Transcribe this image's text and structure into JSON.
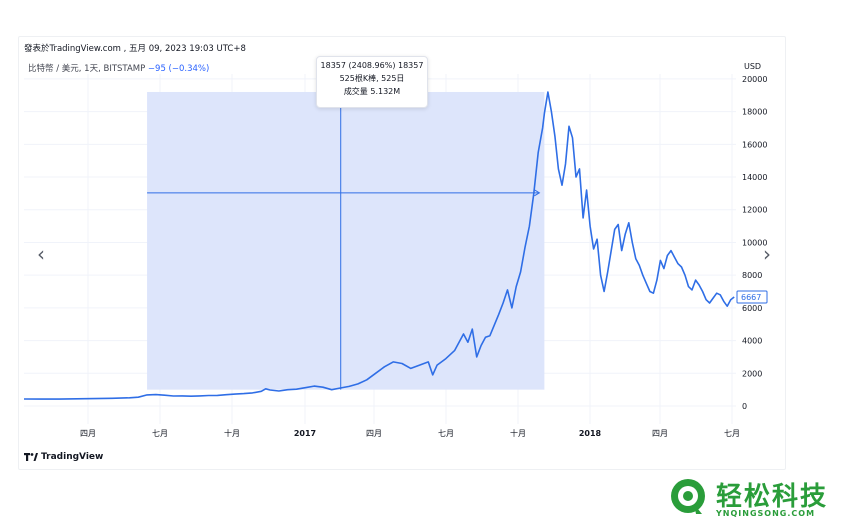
{
  "header": {
    "published": "發表於TradingView.com , 五月 09, 2023 19:03 UTC+8"
  },
  "symbol": {
    "name": "比特幣 / 美元, 1天, BITSTAMP",
    "change": "−95 (−0.34%)"
  },
  "tooltip": {
    "line1": "18357 (2408.96%) 18357",
    "line2": "525根K棒, 525日",
    "line3": "成交量 5.132M"
  },
  "last_price": "6667",
  "currency": "USD",
  "branding": {
    "tradingview": "TradingView",
    "watermark": "轻松科技",
    "watermark_url": "YNQINGSONG.COM"
  },
  "colors": {
    "line": "#2f6ee6",
    "measure_fill": "#dbe4fb",
    "measure_line": "#2f6ee6"
  },
  "icons": {
    "prev": "chevron-left-icon",
    "next": "chevron-right-icon"
  },
  "chart_data": {
    "type": "line",
    "title": "",
    "series": [
      {
        "values": [
          [
            0,
            430
          ],
          [
            20,
            425
          ],
          [
            40,
            420
          ],
          [
            60,
            440
          ],
          [
            80,
            455
          ],
          [
            100,
            470
          ],
          [
            120,
            500
          ],
          [
            130,
            540
          ],
          [
            140,
            680
          ],
          [
            150,
            700
          ],
          [
            160,
            660
          ],
          [
            170,
            610
          ],
          [
            180,
            620
          ],
          [
            190,
            600
          ],
          [
            200,
            620
          ],
          [
            210,
            640
          ],
          [
            220,
            650
          ],
          [
            230,
            690
          ],
          [
            240,
            730
          ],
          [
            250,
            760
          ],
          [
            260,
            800
          ],
          [
            270,
            900
          ],
          [
            275,
            1050
          ],
          [
            280,
            980
          ],
          [
            290,
            920
          ],
          [
            300,
            1000
          ],
          [
            310,
            1030
          ],
          [
            320,
            1120
          ],
          [
            330,
            1220
          ],
          [
            340,
            1150
          ],
          [
            350,
            1000
          ],
          [
            360,
            1100
          ],
          [
            370,
            1200
          ],
          [
            380,
            1350
          ],
          [
            390,
            1600
          ],
          [
            400,
            2000
          ],
          [
            410,
            2400
          ],
          [
            420,
            2700
          ],
          [
            430,
            2600
          ],
          [
            440,
            2300
          ],
          [
            450,
            2500
          ],
          [
            460,
            2700
          ],
          [
            465,
            1900
          ],
          [
            470,
            2500
          ],
          [
            480,
            2900
          ],
          [
            490,
            3400
          ],
          [
            500,
            4400
          ],
          [
            505,
            3900
          ],
          [
            510,
            4700
          ],
          [
            515,
            3000
          ],
          [
            520,
            3700
          ],
          [
            525,
            4200
          ],
          [
            530,
            4300
          ],
          [
            540,
            5600
          ],
          [
            545,
            6300
          ],
          [
            550,
            7100
          ],
          [
            555,
            6000
          ],
          [
            560,
            7300
          ],
          [
            565,
            8200
          ],
          [
            570,
            9700
          ],
          [
            575,
            11000
          ],
          [
            580,
            13000
          ],
          [
            585,
            15500
          ],
          [
            590,
            17000
          ],
          [
            592,
            17900
          ],
          [
            596,
            19200
          ],
          [
            600,
            18000
          ],
          [
            604,
            16500
          ],
          [
            608,
            14500
          ],
          [
            612,
            13500
          ],
          [
            616,
            14800
          ],
          [
            620,
            17100
          ],
          [
            624,
            16400
          ],
          [
            628,
            14000
          ],
          [
            632,
            14500
          ],
          [
            636,
            11500
          ],
          [
            640,
            13200
          ],
          [
            644,
            11000
          ],
          [
            648,
            9600
          ],
          [
            652,
            10200
          ],
          [
            656,
            8000
          ],
          [
            660,
            7000
          ],
          [
            664,
            8200
          ],
          [
            668,
            9500
          ],
          [
            672,
            10800
          ],
          [
            676,
            11100
          ],
          [
            680,
            9500
          ],
          [
            684,
            10500
          ],
          [
            688,
            11200
          ],
          [
            692,
            10000
          ],
          [
            696,
            9000
          ],
          [
            700,
            8600
          ],
          [
            704,
            8000
          ],
          [
            708,
            7500
          ],
          [
            712,
            7000
          ],
          [
            716,
            6900
          ],
          [
            720,
            7700
          ],
          [
            724,
            8900
          ],
          [
            728,
            8400
          ],
          [
            732,
            9200
          ],
          [
            736,
            9500
          ],
          [
            740,
            9100
          ],
          [
            744,
            8700
          ],
          [
            748,
            8500
          ],
          [
            752,
            8000
          ],
          [
            756,
            7300
          ],
          [
            760,
            7100
          ],
          [
            764,
            7700
          ],
          [
            768,
            7400
          ],
          [
            772,
            7000
          ],
          [
            776,
            6500
          ],
          [
            780,
            6300
          ],
          [
            784,
            6600
          ],
          [
            788,
            6900
          ],
          [
            792,
            6800
          ],
          [
            796,
            6400
          ],
          [
            800,
            6100
          ],
          [
            804,
            6500
          ],
          [
            808,
            6667
          ]
        ]
      }
    ],
    "x_axis": {
      "ticks": [
        "四月",
        "七月",
        "十月",
        "2017",
        "四月",
        "七月",
        "十月",
        "2018",
        "四月",
        "七月"
      ],
      "bold_ticks": [
        "2017",
        "2018"
      ]
    },
    "y_axis": {
      "unit": "USD",
      "ticks": [
        0,
        2000,
        4000,
        6000,
        8000,
        10000,
        12000,
        14000,
        16000,
        18000,
        20000
      ],
      "ylim": [
        -1100,
        20300
      ]
    },
    "measure": {
      "x_start": 140,
      "x_end": 592,
      "y_start": 1000,
      "y_end": 19200
    },
    "grid": true
  }
}
